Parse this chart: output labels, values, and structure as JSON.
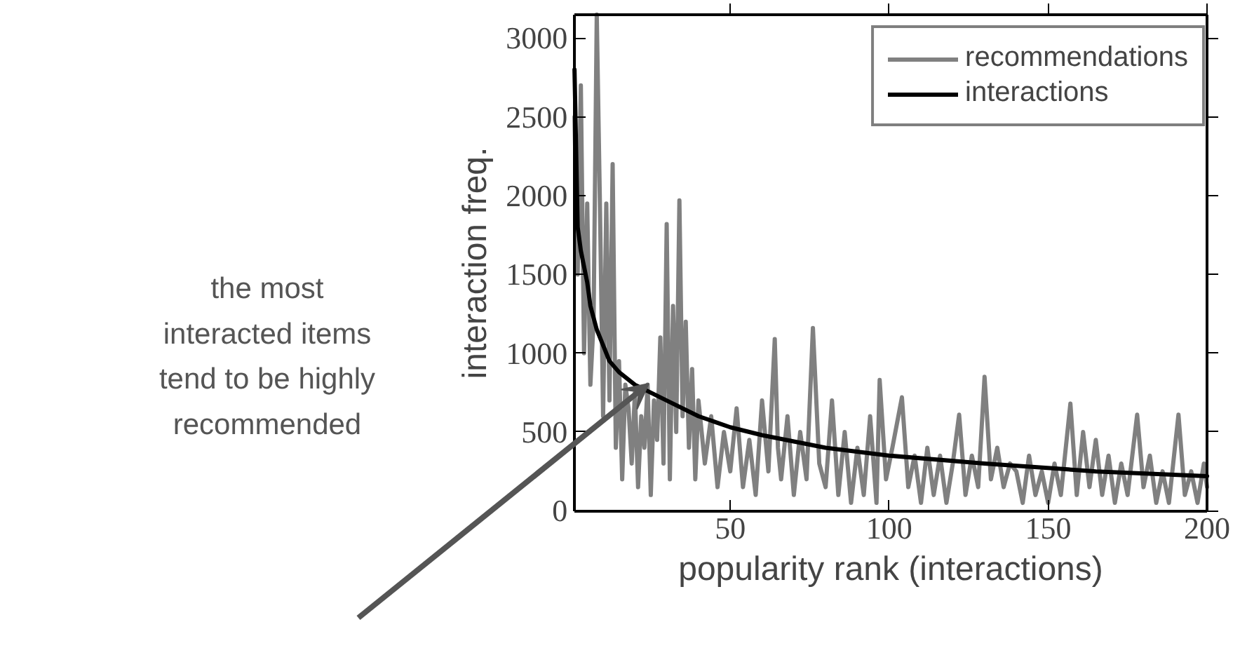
{
  "chart_data": {
    "type": "line",
    "xlabel": "popularity rank (interactions)",
    "ylabel": "interaction freq.",
    "xlim": [
      1,
      200
    ],
    "ylim": [
      0,
      3150
    ],
    "xticks": [
      50,
      100,
      150,
      200
    ],
    "yticks": [
      0,
      500,
      1000,
      1500,
      2000,
      2500,
      3000
    ],
    "grid": false,
    "legend": "top right",
    "annotations": [
      "the most interacted items tend to be highly recommended"
    ],
    "series": [
      {
        "name": "recommendations",
        "color": "#808080",
        "x": [
          1,
          2,
          3,
          4,
          5,
          6,
          7,
          8,
          9,
          10,
          11,
          12,
          13,
          14,
          15,
          16,
          17,
          18,
          19,
          20,
          21,
          22,
          23,
          24,
          25,
          26,
          27,
          28,
          29,
          30,
          31,
          32,
          33,
          34,
          35,
          36,
          37,
          38,
          39,
          40,
          42,
          44,
          46,
          48,
          50,
          52,
          54,
          56,
          58,
          60,
          62,
          64,
          65,
          66,
          68,
          70,
          72,
          74,
          76,
          78,
          80,
          82,
          84,
          86,
          88,
          90,
          92,
          94,
          96,
          97,
          99,
          101,
          104,
          106,
          108,
          110,
          112,
          114,
          116,
          118,
          120,
          122,
          124,
          126,
          128,
          130,
          132,
          134,
          136,
          138,
          140,
          142,
          144,
          146,
          148,
          150,
          152,
          154,
          157,
          159,
          161,
          163,
          165,
          167,
          169,
          171,
          173,
          175,
          178,
          180,
          182,
          184,
          186,
          188,
          191,
          193,
          195,
          197,
          199,
          200
        ],
        "values": [
          2500,
          1500,
          2700,
          1000,
          1950,
          800,
          1200,
          3150,
          1940,
          600,
          1950,
          700,
          2200,
          400,
          950,
          200,
          800,
          650,
          300,
          750,
          150,
          600,
          400,
          800,
          100,
          700,
          450,
          1100,
          300,
          1820,
          200,
          1300,
          500,
          1970,
          600,
          1200,
          400,
          900,
          200,
          700,
          300,
          600,
          150,
          500,
          250,
          650,
          150,
          450,
          100,
          700,
          250,
          1090,
          400,
          200,
          600,
          100,
          500,
          200,
          1160,
          300,
          150,
          700,
          100,
          500,
          50,
          400,
          100,
          600,
          50,
          830,
          200,
          400,
          720,
          150,
          350,
          50,
          400,
          100,
          350,
          50,
          300,
          610,
          100,
          350,
          150,
          850,
          200,
          400,
          150,
          300,
          250,
          50,
          350,
          100,
          250,
          50,
          300,
          100,
          680,
          100,
          500,
          150,
          450,
          100,
          350,
          50,
          300,
          100,
          610,
          150,
          350,
          50,
          250,
          50,
          610,
          100,
          250,
          50,
          300,
          150
        ]
      },
      {
        "name": "interactions",
        "color": "#000000",
        "x": [
          1,
          2,
          3,
          4,
          5,
          6,
          8,
          10,
          12,
          15,
          20,
          25,
          30,
          40,
          50,
          60,
          80,
          100,
          130,
          165,
          200
        ],
        "values": [
          2800,
          1800,
          1650,
          1550,
          1450,
          1300,
          1150,
          1050,
          950,
          880,
          800,
          750,
          700,
          600,
          530,
          480,
          400,
          350,
          300,
          250,
          220
        ]
      }
    ]
  }
}
